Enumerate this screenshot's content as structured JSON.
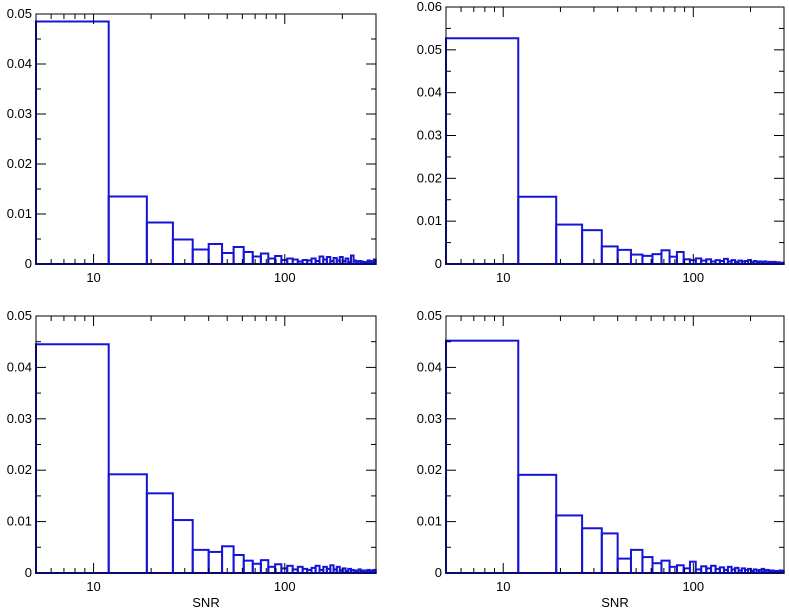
{
  "chart_data": [
    {
      "type": "histogram",
      "xscale": "log",
      "xlim": [
        5,
        300
      ],
      "ylim": [
        0,
        0.05
      ],
      "yticks": [
        0,
        0.01,
        0.02,
        0.03,
        0.04,
        0.05
      ],
      "ytick_labels": [
        "0",
        "0.01",
        "0.02",
        "0.03",
        "0.04",
        "0.05"
      ],
      "xtick_labels": [
        {
          "value": 10,
          "label": "10"
        },
        {
          "value": 100,
          "label": "100"
        }
      ],
      "xlabel": "",
      "color": "#1515d6",
      "bins": [
        5,
        12,
        19,
        26,
        33,
        40,
        47,
        54,
        61,
        68,
        75,
        82,
        89,
        96,
        103,
        110,
        117,
        124,
        131,
        138,
        145,
        152,
        159,
        166,
        173,
        180,
        187,
        194,
        201,
        208,
        215,
        222,
        229,
        236,
        243,
        250,
        257,
        264,
        271,
        278,
        285,
        292,
        299
      ],
      "values": [
        0.0485,
        0.0135,
        0.0083,
        0.0049,
        0.0029,
        0.004,
        0.0022,
        0.0034,
        0.0024,
        0.0015,
        0.0021,
        0.0011,
        0.0016,
        0.0008,
        0.0011,
        0.0009,
        0.0005,
        0.0008,
        0.0007,
        0.0011,
        0.0006,
        0.0015,
        0.0009,
        0.0014,
        0.0006,
        0.0012,
        0.0007,
        0.0014,
        0.0006,
        0.0011,
        0.0004,
        0.0017,
        0.0007,
        0.0005,
        0.0006,
        0.0005,
        0.0004,
        0.0003,
        0.0007,
        0.0006,
        0.0003,
        0.0009
      ]
    },
    {
      "type": "histogram",
      "xscale": "log",
      "xlim": [
        5,
        300
      ],
      "ylim": [
        0,
        0.06
      ],
      "yticks": [
        0,
        0.01,
        0.02,
        0.03,
        0.04,
        0.05,
        0.06
      ],
      "ytick_labels": [
        "0",
        "0.01",
        "0.02",
        "0.03",
        "0.04",
        "0.05",
        "0.06"
      ],
      "xtick_labels": [
        {
          "value": 10,
          "label": "10"
        },
        {
          "value": 100,
          "label": "100"
        }
      ],
      "xlabel": "",
      "color": "#1515d6",
      "bins": [
        5,
        12,
        19,
        26,
        33,
        40,
        47,
        54,
        61,
        68,
        75,
        82,
        89,
        96,
        103,
        110,
        117,
        124,
        131,
        138,
        145,
        152,
        159,
        166,
        173,
        180,
        187,
        194,
        201,
        208,
        215,
        222,
        229,
        236,
        243,
        250,
        257,
        264,
        271,
        278,
        285,
        292,
        299
      ],
      "values": [
        0.0527,
        0.0157,
        0.0092,
        0.0079,
        0.0041,
        0.0033,
        0.0022,
        0.0019,
        0.0023,
        0.0032,
        0.0017,
        0.0028,
        0.0011,
        0.0009,
        0.0013,
        0.0008,
        0.0011,
        0.0006,
        0.0009,
        0.0007,
        0.0012,
        0.0006,
        0.0009,
        0.0005,
        0.0008,
        0.0006,
        0.0007,
        0.0009,
        0.0004,
        0.0007,
        0.0005,
        0.0006,
        0.0004,
        0.0006,
        0.0003,
        0.0005,
        0.0003,
        0.0005,
        0.0003,
        0.0004,
        0.0002,
        0.0003
      ]
    },
    {
      "type": "histogram",
      "xscale": "log",
      "xlim": [
        5,
        300
      ],
      "ylim": [
        0,
        0.05
      ],
      "yticks": [
        0,
        0.01,
        0.02,
        0.03,
        0.04,
        0.05
      ],
      "ytick_labels": [
        "0",
        "0.01",
        "0.02",
        "0.03",
        "0.04",
        "0.05"
      ],
      "xtick_labels": [
        {
          "value": 10,
          "label": "10"
        },
        {
          "value": 100,
          "label": "100"
        }
      ],
      "xlabel": "SNR",
      "color": "#1515d6",
      "bins": [
        5,
        12,
        19,
        26,
        33,
        40,
        47,
        54,
        61,
        68,
        75,
        82,
        89,
        96,
        103,
        110,
        117,
        124,
        131,
        138,
        145,
        152,
        159,
        166,
        173,
        180,
        187,
        194,
        201,
        208,
        215,
        222,
        229,
        236,
        243,
        250,
        257,
        264,
        271,
        278,
        285,
        292,
        299
      ],
      "values": [
        0.0445,
        0.0192,
        0.0155,
        0.0103,
        0.0045,
        0.0041,
        0.0052,
        0.0035,
        0.0024,
        0.0018,
        0.0025,
        0.0012,
        0.0017,
        0.0009,
        0.0014,
        0.0007,
        0.0012,
        0.0008,
        0.0006,
        0.001,
        0.0014,
        0.0006,
        0.0012,
        0.0008,
        0.0015,
        0.0007,
        0.0012,
        0.0005,
        0.0009,
        0.0004,
        0.0008,
        0.0006,
        0.0005,
        0.0004,
        0.0007,
        0.0004,
        0.0005,
        0.0003,
        0.0006,
        0.0004,
        0.0005,
        0.0006
      ]
    },
    {
      "type": "histogram",
      "xscale": "log",
      "xlim": [
        5,
        300
      ],
      "ylim": [
        0,
        0.05
      ],
      "yticks": [
        0,
        0.01,
        0.02,
        0.03,
        0.04,
        0.05
      ],
      "ytick_labels": [
        "0",
        "0.01",
        "0.02",
        "0.03",
        "0.04",
        "0.05"
      ],
      "xtick_labels": [
        {
          "value": 10,
          "label": "10"
        },
        {
          "value": 100,
          "label": "100"
        }
      ],
      "xlabel": "SNR",
      "color": "#1515d6",
      "bins": [
        5,
        12,
        19,
        26,
        33,
        40,
        47,
        54,
        61,
        68,
        75,
        82,
        89,
        96,
        103,
        110,
        117,
        124,
        131,
        138,
        145,
        152,
        159,
        166,
        173,
        180,
        187,
        194,
        201,
        208,
        215,
        222,
        229,
        236,
        243,
        250,
        257,
        264,
        271,
        278,
        285,
        292,
        299
      ],
      "values": [
        0.0452,
        0.0191,
        0.0112,
        0.0087,
        0.0077,
        0.0028,
        0.0045,
        0.0031,
        0.0019,
        0.0024,
        0.0012,
        0.0015,
        0.0009,
        0.0022,
        0.0007,
        0.0013,
        0.0009,
        0.0014,
        0.0008,
        0.0011,
        0.0006,
        0.0012,
        0.0007,
        0.001,
        0.0005,
        0.0009,
        0.0006,
        0.0008,
        0.0004,
        0.0007,
        0.0005,
        0.0006,
        0.0008,
        0.0005,
        0.0006,
        0.0004,
        0.0005,
        0.0003,
        0.0004,
        0.0003,
        0.0005,
        0.0004
      ]
    }
  ]
}
